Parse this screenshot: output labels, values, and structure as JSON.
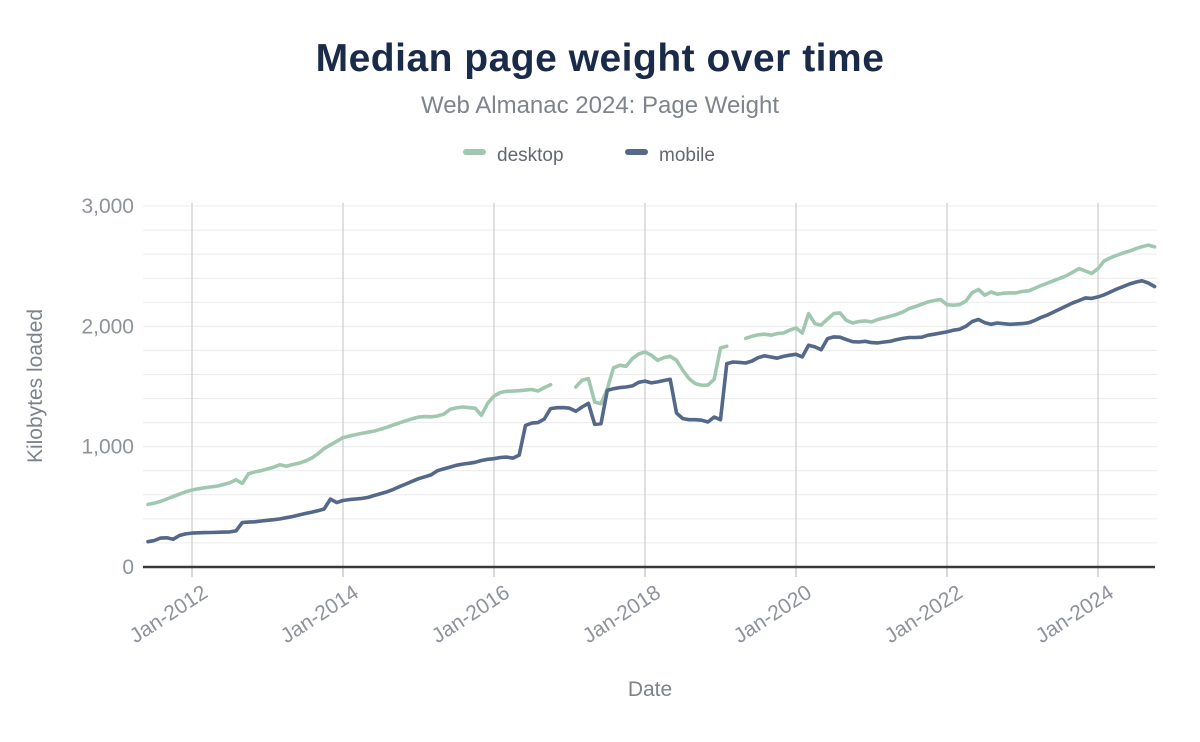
{
  "chart": {
    "title": "Median page weight over time",
    "subtitle": "Web Almanac 2024: Page Weight",
    "x_axis_title": "Date",
    "y_axis_title": "Kilobytes loaded",
    "colors": {
      "title": "#1a2b49",
      "subtitle_gray": "#7f838d",
      "tick_gray": "#8e929b",
      "desktop": "#a0c8b0",
      "mobile": "#54688a",
      "axis_line": "#3a3a3a",
      "v_grid": "#d3d3d3",
      "h_grid": "#ececec"
    }
  },
  "chart_data": {
    "type": "line",
    "title": "Median page weight over time",
    "subtitle": "Web Almanac 2024: Page Weight",
    "xlabel": "Date",
    "ylabel": "Kilobytes loaded",
    "ylim": [
      0,
      3000
    ],
    "y_major_ticks": [
      0,
      1000,
      2000,
      3000
    ],
    "y_tick_labels": [
      "0",
      "1,000",
      "2,000",
      "3,000"
    ],
    "y_minor_step": 200,
    "grid": "on",
    "legend_position": "top-center",
    "legend": [
      "desktop",
      "mobile"
    ],
    "x_frequency": "monthly",
    "x_start": "2011-06",
    "x_end": "2024-10",
    "x_ticks": [
      {
        "label": "Jan-2012",
        "month_index": 7
      },
      {
        "label": "Jan-2014",
        "month_index": 31
      },
      {
        "label": "Jan-2016",
        "month_index": 55
      },
      {
        "label": "Jan-2018",
        "month_index": 79
      },
      {
        "label": "Jan-2020",
        "month_index": 103
      },
      {
        "label": "Jan-2022",
        "month_index": 127
      },
      {
        "label": "Jan-2024",
        "month_index": 151
      }
    ],
    "series": [
      {
        "name": "desktop",
        "color": "#a0c8b0",
        "values": [
          520,
          530,
          545,
          565,
          585,
          605,
          625,
          640,
          650,
          658,
          666,
          672,
          686,
          700,
          725,
          695,
          775,
          790,
          800,
          815,
          830,
          850,
          838,
          852,
          863,
          880,
          905,
          940,
          985,
          1015,
          1045,
          1075,
          1088,
          1100,
          1110,
          1120,
          1130,
          1145,
          1162,
          1180,
          1198,
          1215,
          1232,
          1246,
          1250,
          1248,
          1255,
          1270,
          1310,
          1322,
          1330,
          1325,
          1320,
          1261,
          1360,
          1420,
          1450,
          1460,
          1462,
          1465,
          1470,
          1475,
          1463,
          1490,
          1515,
          null,
          null,
          null,
          1496,
          1552,
          1566,
          1371,
          1357,
          1480,
          1655,
          1676,
          1668,
          1732,
          1770,
          1787,
          1760,
          1718,
          1740,
          1751,
          1718,
          1635,
          1566,
          1524,
          1510,
          1512,
          1560,
          1820,
          1835,
          null,
          null,
          1900,
          1918,
          1930,
          1935,
          1926,
          1940,
          1945,
          1968,
          1987,
          1945,
          2106,
          2023,
          2010,
          2060,
          2106,
          2112,
          2050,
          2028,
          2040,
          2045,
          2037,
          2057,
          2070,
          2084,
          2100,
          2120,
          2148,
          2165,
          2184,
          2203,
          2215,
          2223,
          2180,
          2176,
          2181,
          2210,
          2280,
          2306,
          2259,
          2285,
          2267,
          2275,
          2278,
          2278,
          2290,
          2295,
          2318,
          2340,
          2360,
          2380,
          2400,
          2422,
          2450,
          2480,
          2460,
          2440,
          2480,
          2545,
          2570,
          2590,
          2610,
          2625,
          2645,
          2662,
          2675,
          2660
        ]
      },
      {
        "name": "mobile",
        "color": "#54688a",
        "values": [
          210,
          220,
          240,
          243,
          230,
          262,
          275,
          282,
          284,
          286,
          287,
          288,
          290,
          292,
          300,
          370,
          373,
          376,
          382,
          388,
          393,
          400,
          410,
          420,
          432,
          445,
          455,
          467,
          482,
          564,
          535,
          553,
          560,
          565,
          570,
          578,
          595,
          610,
          625,
          645,
          668,
          690,
          712,
          734,
          750,
          765,
          800,
          815,
          830,
          845,
          855,
          862,
          870,
          885,
          895,
          900,
          910,
          913,
          905,
          930,
          1177,
          1196,
          1200,
          1230,
          1316,
          1324,
          1325,
          1320,
          1294,
          1330,
          1360,
          1186,
          1191,
          1468,
          1482,
          1491,
          1496,
          1505,
          1535,
          1545,
          1530,
          1538,
          1550,
          1560,
          1280,
          1233,
          1224,
          1224,
          1220,
          1205,
          1246,
          1224,
          1690,
          1704,
          1700,
          1695,
          1712,
          1740,
          1755,
          1745,
          1735,
          1750,
          1760,
          1768,
          1746,
          1843,
          1829,
          1805,
          1898,
          1912,
          1910,
          1890,
          1872,
          1870,
          1876,
          1865,
          1862,
          1870,
          1876,
          1890,
          1900,
          1907,
          1907,
          1910,
          1926,
          1935,
          1945,
          1954,
          1968,
          1975,
          2000,
          2040,
          2057,
          2030,
          2017,
          2028,
          2022,
          2017,
          2020,
          2023,
          2030,
          2050,
          2075,
          2095,
          2120,
          2145,
          2170,
          2195,
          2215,
          2236,
          2232,
          2245,
          2262,
          2286,
          2310,
          2330,
          2352,
          2368,
          2378,
          2360,
          2330
        ]
      }
    ]
  }
}
